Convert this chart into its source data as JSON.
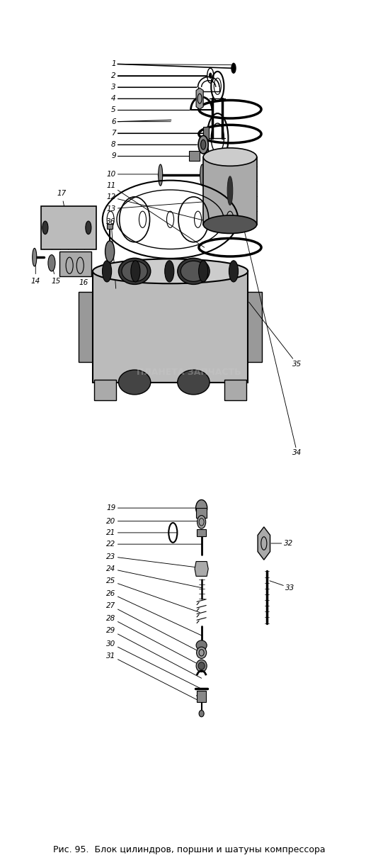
{
  "caption": "Рис. 95.  Блок цилиндров, поршни и шатуны компрессора",
  "caption_fontsize": 9,
  "background_color": "#ffffff",
  "fig_width": 5.34,
  "fig_height": 12.21,
  "dpi": 100,
  "watermark_text": "ПЛАНЕТА ЗАПЧАСТЬ",
  "text_color": "#000000",
  "line_color": "#000000"
}
